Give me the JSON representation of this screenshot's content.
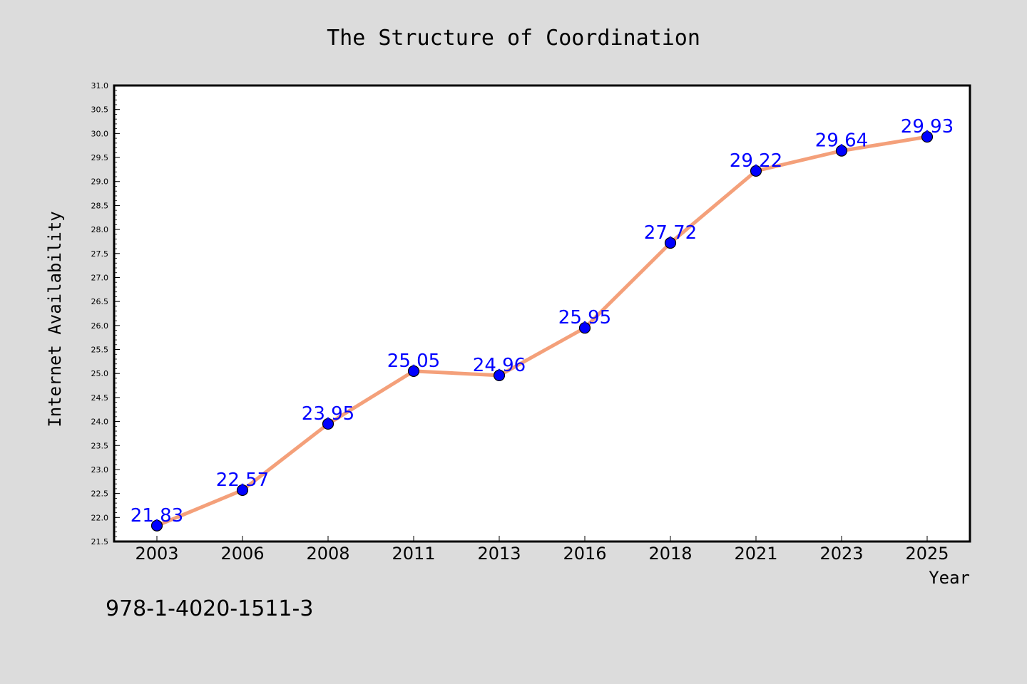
{
  "chart_data": {
    "type": "line",
    "title": "The Structure of Coordination",
    "xlabel": "Year",
    "ylabel": "Internet Availability",
    "categories": [
      "2003",
      "2006",
      "2008",
      "2011",
      "2013",
      "2016",
      "2018",
      "2021",
      "2023",
      "2025"
    ],
    "series": [
      {
        "values": [
          21.83,
          22.57,
          23.95,
          25.05,
          24.96,
          25.95,
          27.72,
          29.22,
          29.64,
          29.93
        ],
        "labels": [
          "21.83",
          "22.57",
          "23.95",
          "25.05",
          "24.96",
          "25.95",
          "27.72",
          "29.22",
          "29.64",
          "29.93"
        ]
      }
    ],
    "ylim": [
      21.5,
      31.0
    ],
    "yticks": [
      "21.5",
      "22.0",
      "22.5",
      "23.0",
      "23.5",
      "24.0",
      "24.5",
      "25.0",
      "25.5",
      "26.0",
      "26.5",
      "27.0",
      "27.5",
      "28.0",
      "28.5",
      "29.0",
      "29.5",
      "30.0",
      "30.5",
      "31.0"
    ],
    "grid": false,
    "colors": {
      "line": "#f4a07a",
      "marker": "#0000ff",
      "label": "#0000ff",
      "background": "#dcdcdc",
      "plot": "#ffffff"
    }
  },
  "annotation": "978-1-4020-1511-3"
}
